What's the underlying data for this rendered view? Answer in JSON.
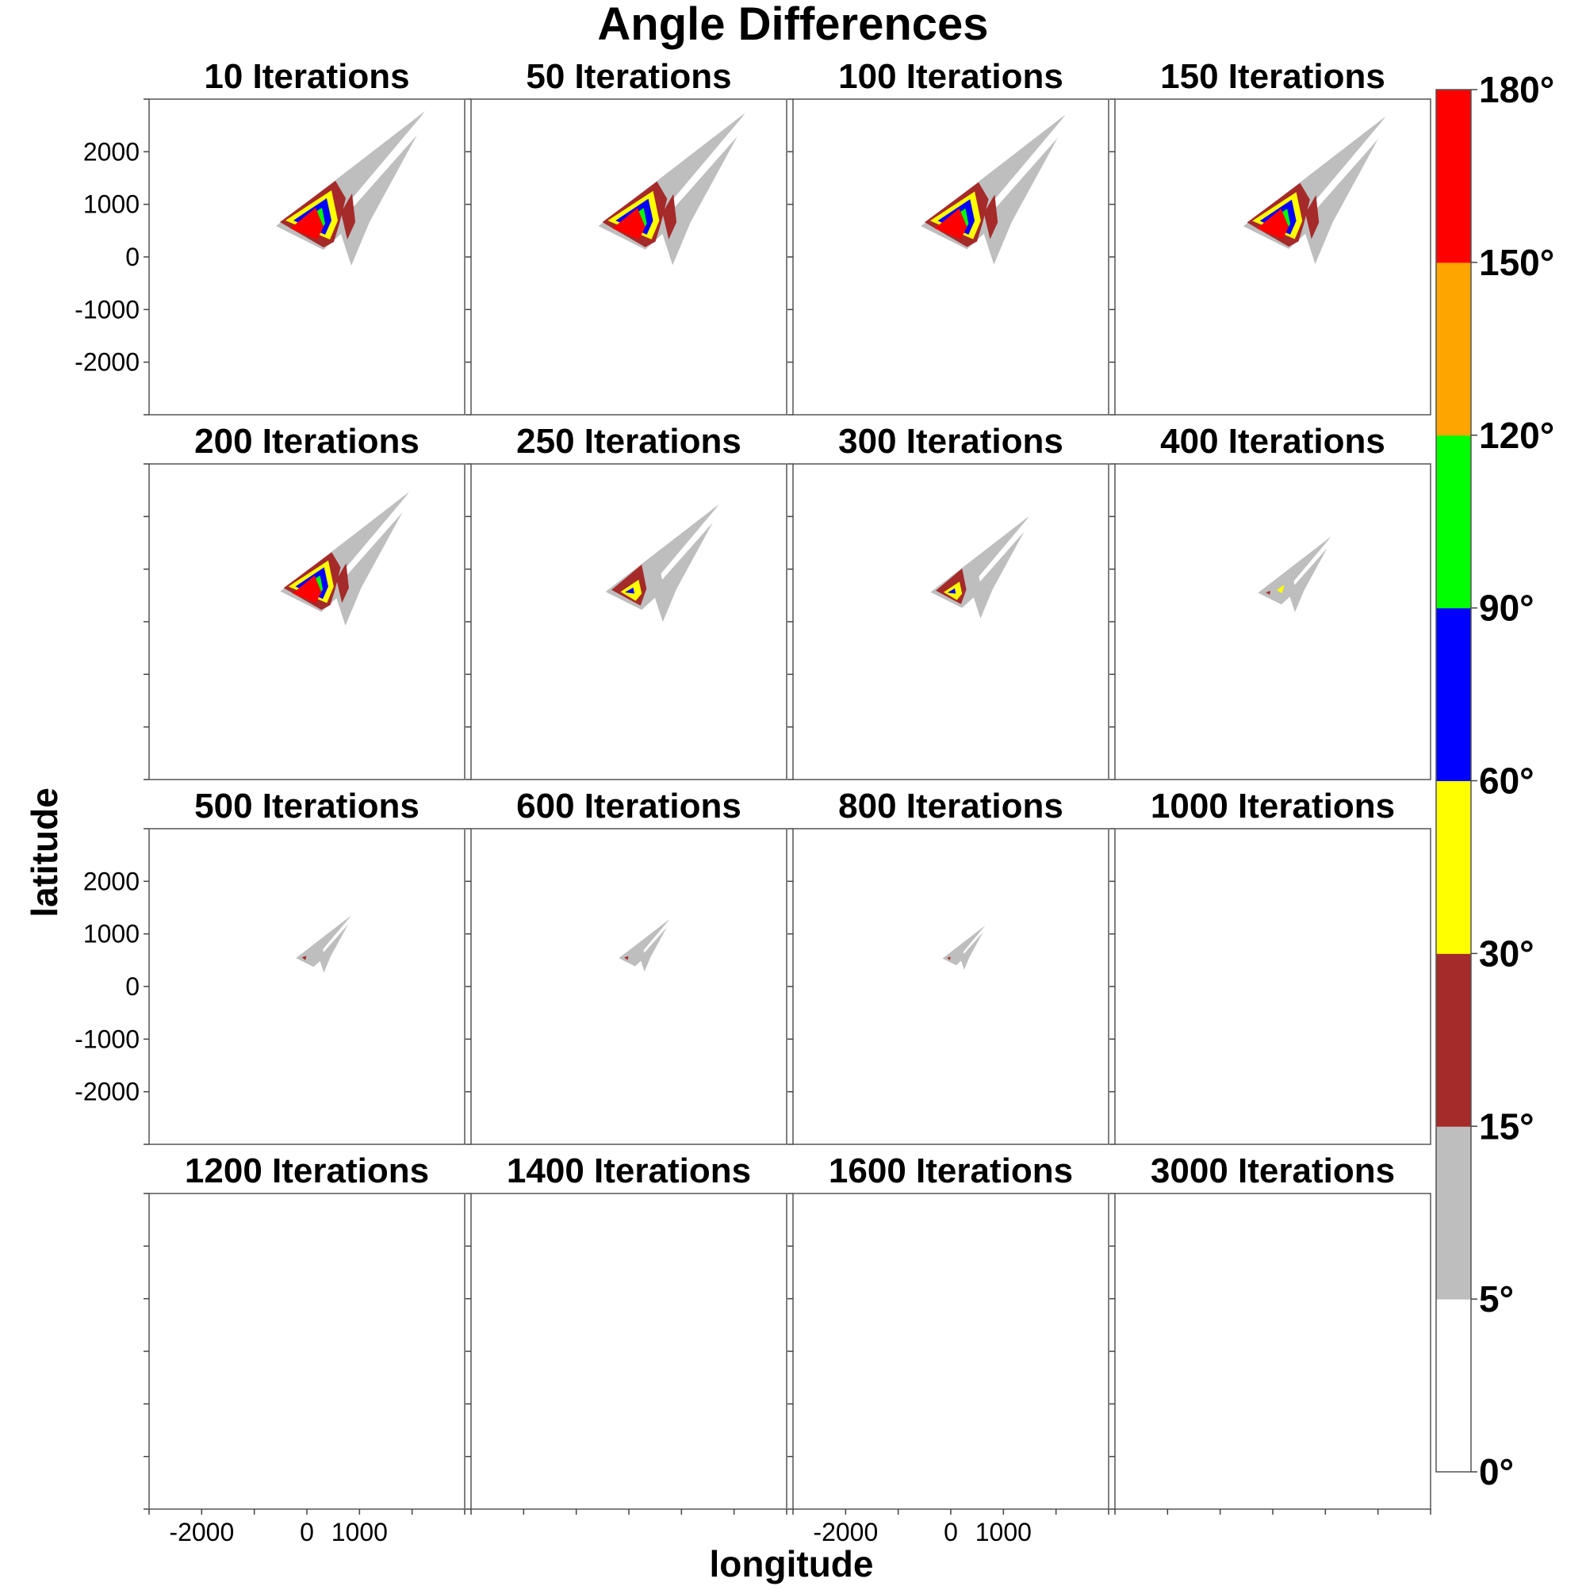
{
  "chart_data": {
    "type": "heatmap",
    "title": "Angle Differences",
    "xlabel": "longitude",
    "ylabel": "latitude",
    "xlim": [
      -3000,
      3000
    ],
    "ylim": [
      -3000,
      3000
    ],
    "x_ticks": [
      -2000,
      0,
      1000
    ],
    "y_ticks": [
      2000,
      1000,
      0,
      -1000,
      -2000
    ],
    "colorbar": {
      "bins": [
        {
          "from": 0,
          "to": 5,
          "color": "#ffffff"
        },
        {
          "from": 5,
          "to": 15,
          "color": "#bebebe"
        },
        {
          "from": 15,
          "to": 30,
          "color": "#a52a2a"
        },
        {
          "from": 30,
          "to": 60,
          "color": "#ffff00"
        },
        {
          "from": 60,
          "to": 90,
          "color": "#0000ff"
        },
        {
          "from": 90,
          "to": 120,
          "color": "#00ff00"
        },
        {
          "from": 120,
          "to": 150,
          "color": "#ffa500"
        },
        {
          "from": 150,
          "to": 180,
          "color": "#ff0000"
        }
      ],
      "labels": [
        "180°",
        "150°",
        "120°",
        "90°",
        "60°",
        "30°",
        "15°",
        "5°",
        "0°"
      ]
    },
    "panels": [
      {
        "title": "10 Iterations",
        "stage": 1.0
      },
      {
        "title": "50 Iterations",
        "stage": 0.98
      },
      {
        "title": "100 Iterations",
        "stage": 0.96
      },
      {
        "title": "150 Iterations",
        "stage": 0.94
      },
      {
        "title": "200 Iterations",
        "stage": 0.82
      },
      {
        "title": "250 Iterations",
        "stage": 0.68
      },
      {
        "title": "300 Iterations",
        "stage": 0.55
      },
      {
        "title": "400 Iterations",
        "stage": 0.32
      },
      {
        "title": "500 Iterations",
        "stage": 0.16
      },
      {
        "title": "600 Iterations",
        "stage": 0.12
      },
      {
        "title": "800 Iterations",
        "stage": 0.05
      },
      {
        "title": "1000 Iterations",
        "stage": 0
      },
      {
        "title": "1200 Iterations",
        "stage": 0
      },
      {
        "title": "1400 Iterations",
        "stage": 0
      },
      {
        "title": "1600 Iterations",
        "stage": 0
      },
      {
        "title": "3000 Iterations",
        "stage": 0
      }
    ]
  }
}
